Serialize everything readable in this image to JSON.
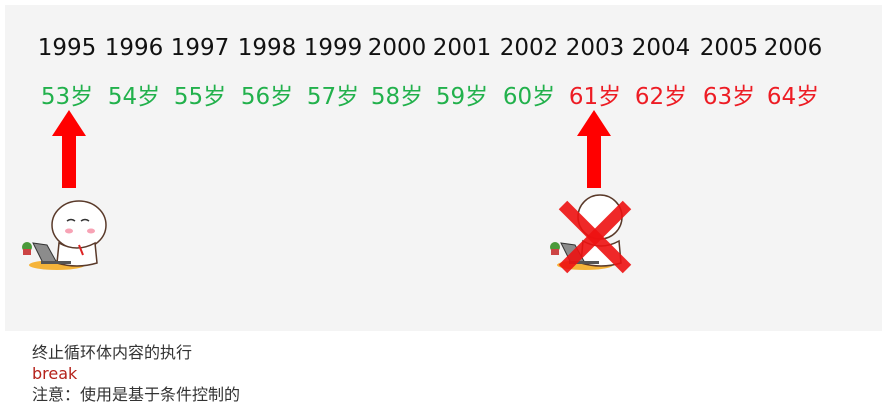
{
  "timeline": {
    "years": [
      "1995",
      "1996",
      "1997",
      "1998",
      "1999",
      "2000",
      "2001",
      "2002",
      "2003",
      "2004",
      "2005",
      "2006"
    ],
    "ages": [
      {
        "text": "53岁",
        "status": "continue"
      },
      {
        "text": "54岁",
        "status": "continue"
      },
      {
        "text": "55岁",
        "status": "continue"
      },
      {
        "text": "56岁",
        "status": "continue"
      },
      {
        "text": "57岁",
        "status": "continue"
      },
      {
        "text": "58岁",
        "status": "continue"
      },
      {
        "text": "59岁",
        "status": "continue"
      },
      {
        "text": "60岁",
        "status": "continue"
      },
      {
        "text": "61岁",
        "status": "stopped"
      },
      {
        "text": "62岁",
        "status": "stopped"
      },
      {
        "text": "63岁",
        "status": "stopped"
      },
      {
        "text": "64岁",
        "status": "stopped"
      }
    ],
    "colors": {
      "continue": "#22b14c",
      "stopped": "#ed1c24",
      "arrow": "#ff0000",
      "cross": "#ee1111"
    },
    "start_marker_index": 0,
    "stop_marker_index": 8
  },
  "notes": {
    "line1": "终止循环体内容的执行",
    "line2": "break",
    "line3": "注意：使用是基于条件控制的",
    "keyword_color": "#b5221b",
    "text_color": "#333333"
  },
  "icons": [
    "up-arrow-icon",
    "person-with-laptop-icon",
    "red-x-icon"
  ]
}
